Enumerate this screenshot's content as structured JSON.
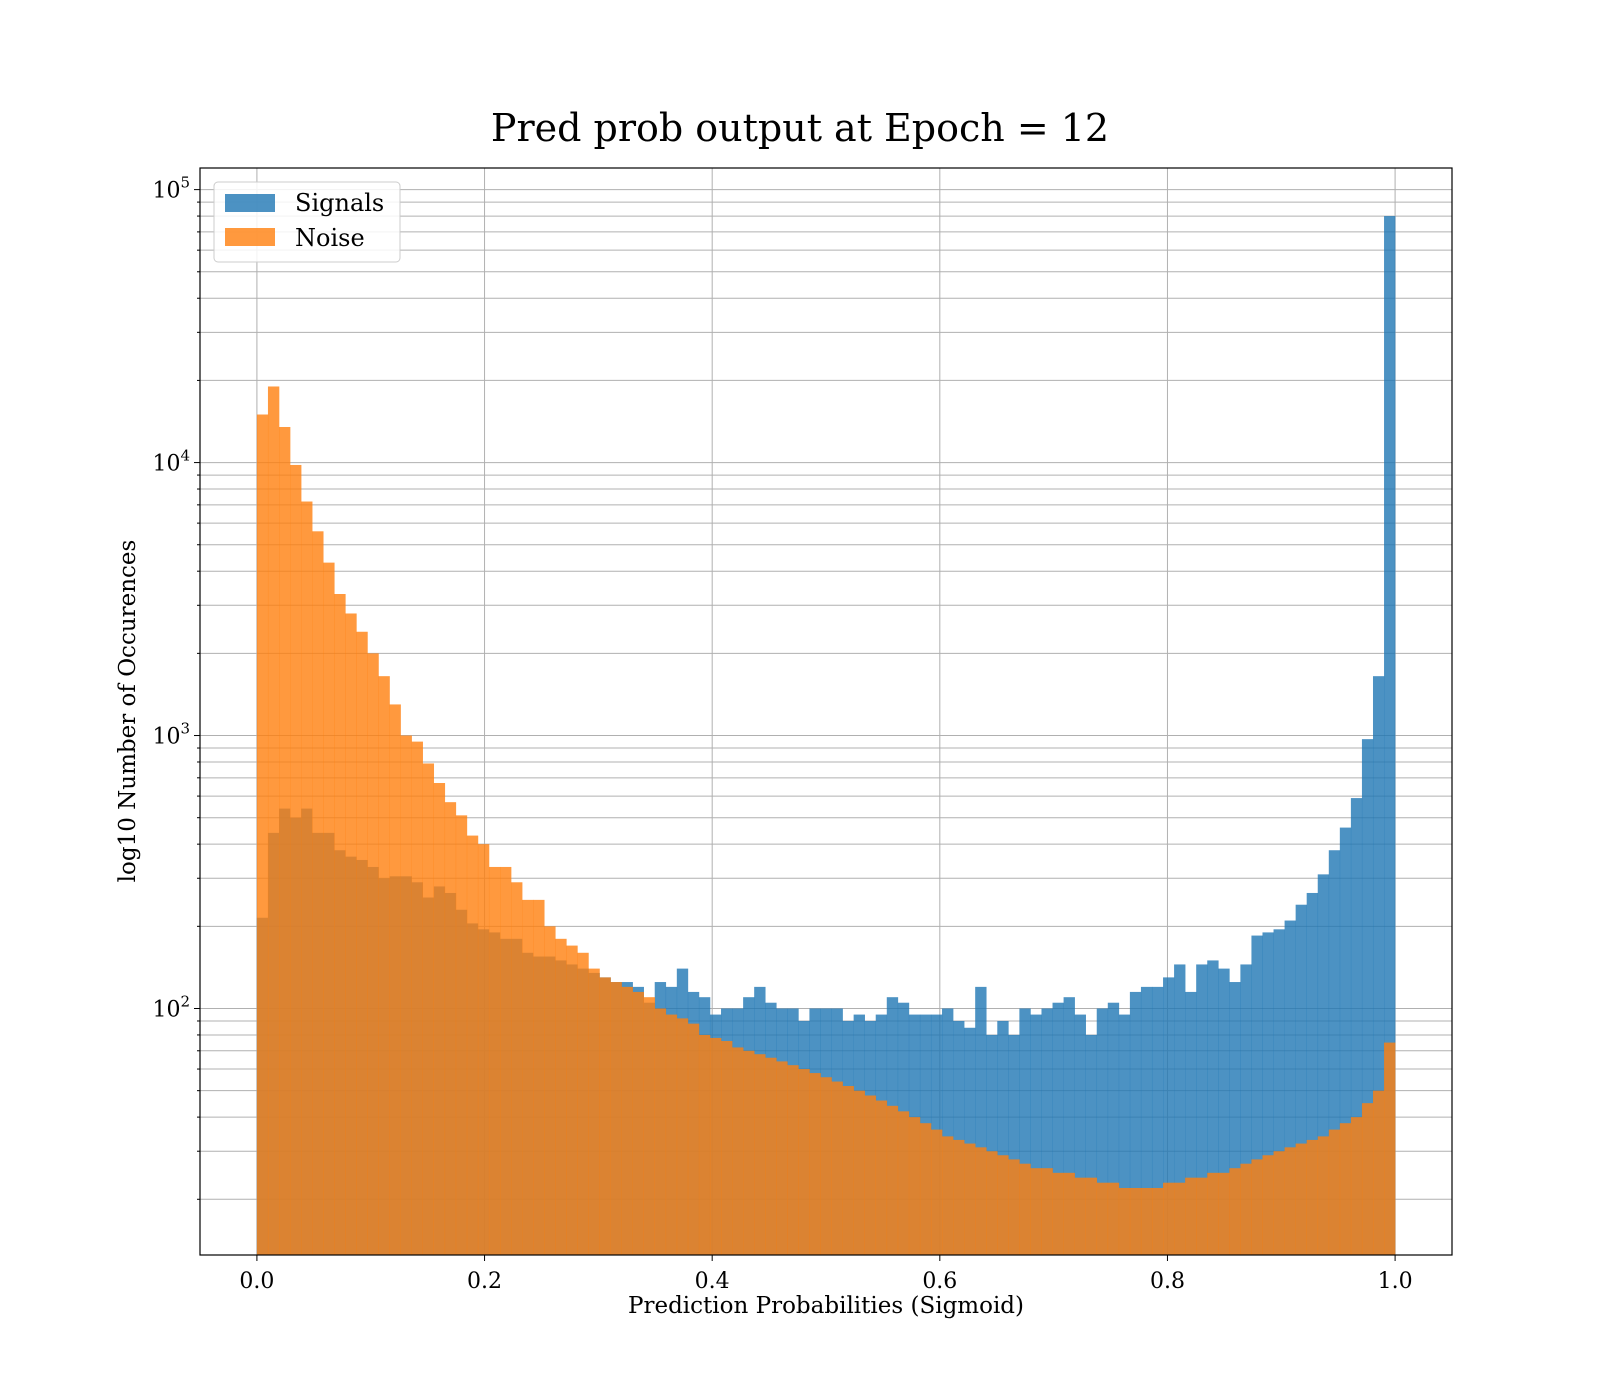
{
  "chart_data": {
    "type": "bar",
    "title": "Pred prob output at Epoch = 12",
    "xlabel": "Prediction Probabilities (Sigmoid)",
    "ylabel": "log10 Number of Occurences",
    "xlim": [
      -0.05,
      1.05
    ],
    "ylim": [
      12.5,
      120000
    ],
    "yscale": "log",
    "grid": true,
    "grid_minor_y": true,
    "legend_position": "top-left",
    "x_ticks": [
      0.0,
      0.2,
      0.4,
      0.6,
      0.8,
      1.0
    ],
    "x_tick_labels": [
      "0.0",
      "0.2",
      "0.4",
      "0.6",
      "0.8",
      "1.0"
    ],
    "y_ticks": [
      100,
      1000,
      10000,
      100000
    ],
    "y_tick_labels": [
      {
        "base": "10",
        "exp": "2"
      },
      {
        "base": "10",
        "exp": "3"
      },
      {
        "base": "10",
        "exp": "4"
      },
      {
        "base": "10",
        "exp": "5"
      }
    ],
    "bin_start": 0.0,
    "bin_width": 0.01,
    "series": [
      {
        "name": "Signals",
        "color": "#1f77b4",
        "opacity": 0.8,
        "values": [
          215,
          440,
          540,
          500,
          540,
          440,
          440,
          380,
          360,
          350,
          330,
          300,
          305,
          305,
          290,
          255,
          280,
          265,
          230,
          205,
          195,
          190,
          180,
          180,
          160,
          155,
          155,
          150,
          145,
          140,
          135,
          130,
          125,
          125,
          120,
          105,
          125,
          120,
          140,
          115,
          110,
          95,
          100,
          100,
          110,
          120,
          105,
          100,
          100,
          90,
          100,
          100,
          100,
          90,
          95,
          90,
          95,
          110,
          105,
          95,
          95,
          95,
          100,
          90,
          85,
          120,
          80,
          90,
          80,
          100,
          95,
          100,
          105,
          110,
          95,
          80,
          100,
          105,
          95,
          115,
          120,
          120,
          130,
          145,
          115,
          145,
          150,
          140,
          125,
          145,
          185,
          190,
          195,
          210,
          240,
          265,
          310,
          380,
          460,
          590,
          970,
          1650,
          80000
        ]
      },
      {
        "name": "Noise",
        "color": "#ff7f0e",
        "opacity": 0.8,
        "values": [
          15000,
          19000,
          13500,
          9800,
          7200,
          5600,
          4300,
          3300,
          2800,
          2400,
          2000,
          1650,
          1300,
          1000,
          950,
          790,
          670,
          570,
          510,
          430,
          400,
          330,
          330,
          290,
          250,
          250,
          200,
          180,
          170,
          160,
          140,
          130,
          125,
          120,
          115,
          110,
          100,
          95,
          92,
          88,
          80,
          78,
          76,
          72,
          70,
          68,
          66,
          64,
          62,
          60,
          58,
          56,
          54,
          52,
          50,
          48,
          46,
          44,
          42,
          40,
          38,
          36,
          34,
          33,
          32,
          31,
          30,
          29,
          28,
          27,
          26,
          26,
          25,
          25,
          24,
          24,
          23,
          23,
          22,
          22,
          22,
          22,
          23,
          23,
          24,
          24,
          25,
          25,
          26,
          27,
          28,
          29,
          30,
          31,
          32,
          33,
          34,
          36,
          38,
          40,
          45,
          50,
          75
        ]
      }
    ]
  }
}
